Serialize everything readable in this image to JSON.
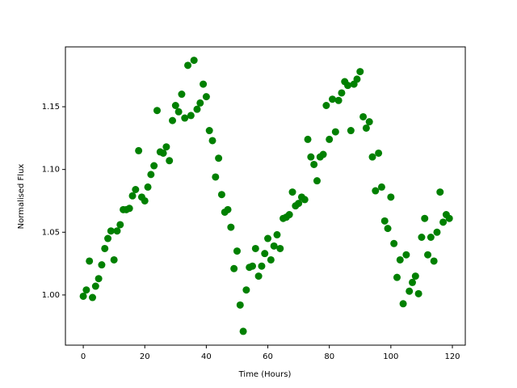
{
  "chart_data": {
    "type": "scatter",
    "xlabel": "Time (Hours)",
    "ylabel": "Normalised Flux",
    "color": "#008000",
    "x": [
      0,
      1,
      2,
      3,
      4,
      5,
      6,
      7,
      8,
      9,
      10,
      11,
      12,
      13,
      14,
      15,
      16,
      17,
      18,
      19,
      20,
      21,
      22,
      23,
      24,
      25,
      26,
      27,
      28,
      29,
      30,
      31,
      32,
      33,
      34,
      35,
      36,
      37,
      38,
      39,
      40,
      41,
      42,
      43,
      44,
      45,
      46,
      47,
      48,
      49,
      50,
      51,
      52,
      53,
      54,
      55,
      56,
      57,
      58,
      59,
      60,
      61,
      62,
      63,
      64,
      65,
      66,
      67,
      68,
      69,
      70,
      71,
      72,
      73,
      74,
      75,
      76,
      77,
      78,
      79,
      80,
      81,
      82,
      83,
      84,
      85,
      86,
      87,
      88,
      89,
      90,
      91,
      92,
      93,
      94,
      95,
      96,
      97,
      98,
      99,
      100,
      101,
      102,
      103,
      104,
      105,
      106,
      107,
      108,
      109,
      110,
      111,
      112,
      113,
      114,
      115,
      116,
      117,
      118,
      119
    ],
    "values": [
      0.999,
      1.004,
      1.027,
      0.998,
      1.007,
      1.013,
      1.024,
      1.037,
      1.045,
      1.051,
      1.028,
      1.051,
      1.056,
      1.068,
      1.068,
      1.069,
      1.079,
      1.084,
      1.115,
      1.078,
      1.075,
      1.086,
      1.096,
      1.103,
      1.147,
      1.114,
      1.113,
      1.118,
      1.107,
      1.139,
      1.151,
      1.146,
      1.16,
      1.141,
      1.183,
      1.143,
      1.187,
      1.148,
      1.153,
      1.168,
      1.158,
      1.131,
      1.123,
      1.094,
      1.109,
      1.08,
      1.066,
      1.068,
      1.054,
      1.021,
      1.035,
      0.992,
      0.971,
      1.004,
      1.022,
      1.023,
      1.037,
      1.015,
      1.023,
      1.033,
      1.045,
      1.028,
      1.039,
      1.048,
      1.037,
      1.061,
      1.062,
      1.064,
      1.082,
      1.071,
      1.073,
      1.078,
      1.076,
      1.124,
      1.11,
      1.104,
      1.091,
      1.11,
      1.112,
      1.151,
      1.124,
      1.156,
      1.13,
      1.155,
      1.161,
      1.17,
      1.167,
      1.131,
      1.168,
      1.172,
      1.178,
      1.142,
      1.133,
      1.138,
      1.11,
      1.083,
      1.113,
      1.086,
      1.059,
      1.053,
      1.078,
      1.041,
      1.014,
      1.028,
      0.993,
      1.032,
      1.003,
      1.01,
      1.015,
      1.001,
      1.046,
      1.061,
      1.032,
      1.046,
      1.027,
      1.05,
      1.082,
      1.058,
      1.064,
      1.061
    ],
    "xlim": [
      -5.8,
      124.2
    ],
    "ylim": [
      0.96,
      1.1977
    ],
    "xticks": [
      0,
      20,
      40,
      60,
      80,
      100,
      120
    ],
    "yticks": [
      {
        "value": 1.0,
        "label": "1.00"
      },
      {
        "value": 1.05,
        "label": "1.05"
      },
      {
        "value": 1.1,
        "label": "1.10"
      },
      {
        "value": 1.15,
        "label": "1.15"
      }
    ]
  }
}
